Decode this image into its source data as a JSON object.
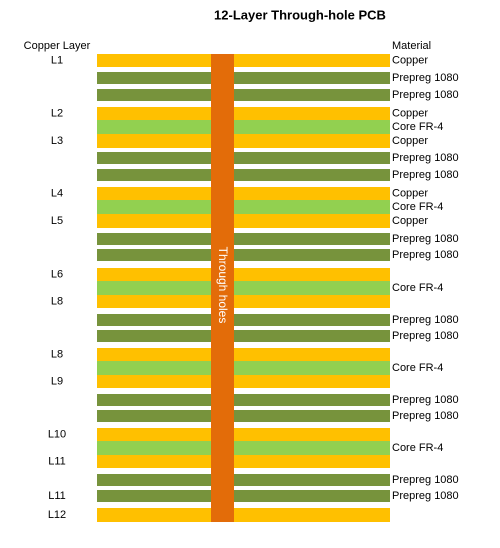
{
  "title": "12-Layer Through-hole PCB",
  "left_header": "Copper Layer",
  "right_header": "Material",
  "hole_label": "Through holes",
  "hole_color": "#E36C09",
  "layers": [
    {
      "layer": "L1",
      "material": "Copper",
      "color": "#FFC000"
    },
    {
      "material": "Prepreg 1080",
      "color": "#77933C"
    },
    {
      "material": "Prepreg 1080",
      "color": "#77933C"
    },
    {
      "layer": "L2",
      "material": "Copper",
      "color": "#FFC000"
    },
    {
      "material": "Core FR-4",
      "color": "#92D050"
    },
    {
      "layer": "L3",
      "material": "Copper",
      "color": "#FFC000"
    },
    {
      "material": "Prepreg 1080",
      "color": "#77933C"
    },
    {
      "material": "Prepreg 1080",
      "color": "#77933C"
    },
    {
      "layer": "L4",
      "material": "Copper",
      "color": "#FFC000"
    },
    {
      "material": "Core FR-4",
      "color": "#92D050"
    },
    {
      "layer": "L5",
      "material": "Copper",
      "color": "#FFC000"
    },
    {
      "material": "Prepreg 1080",
      "color": "#77933C"
    },
    {
      "material": "Prepreg 1080",
      "color": "#77933C"
    },
    {
      "layer": "L6",
      "color": "#FFC000"
    },
    {
      "material": "Core FR-4",
      "color": "#92D050"
    },
    {
      "layer": "L8",
      "color": "#FFC000"
    },
    {
      "material": "Prepreg 1080",
      "color": "#77933C"
    },
    {
      "material": "Prepreg 1080",
      "color": "#77933C"
    },
    {
      "layer": "L8",
      "color": "#FFC000"
    },
    {
      "material": "Core FR-4",
      "color": "#92D050"
    },
    {
      "layer": "L9",
      "color": "#FFC000"
    },
    {
      "material": "Prepreg 1080",
      "color": "#77933C"
    },
    {
      "material": "Prepreg 1080",
      "color": "#77933C"
    },
    {
      "layer": "L10",
      "color": "#FFC000"
    },
    {
      "material": "Core FR-4",
      "color": "#92D050"
    },
    {
      "layer": "L11",
      "color": "#FFC000"
    },
    {
      "material": "Prepreg 1080",
      "color": "#77933C"
    },
    {
      "layer": "L11",
      "material": "Prepreg 1080",
      "color": "#77933C"
    },
    {
      "layer": "L12",
      "color": "#FFC000"
    }
  ]
}
